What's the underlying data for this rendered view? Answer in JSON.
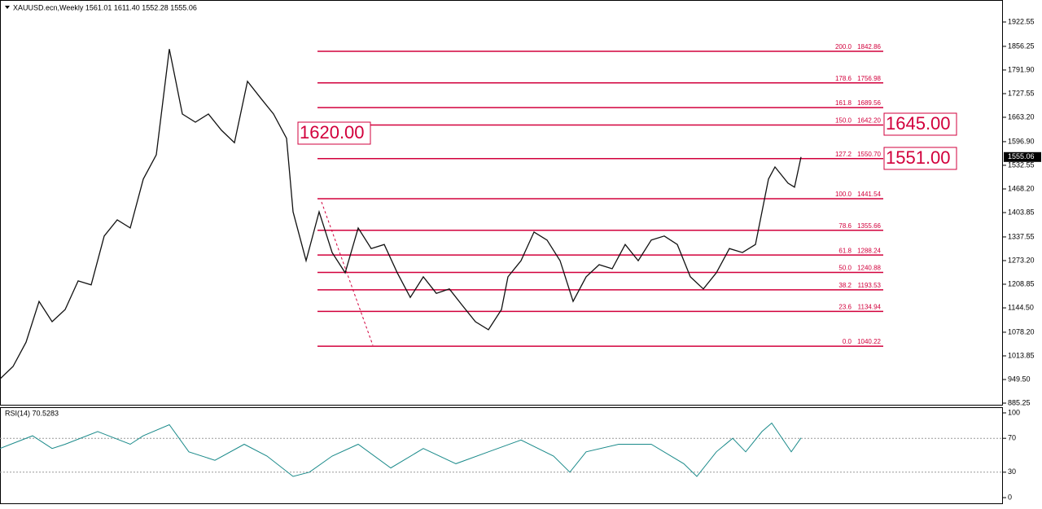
{
  "chart_data": [
    {
      "type": "line",
      "title": "XAUUSD.ecn,Weekly  1561.01 1611.40 1552.28 1555.06",
      "color": "#111111",
      "x": [
        0,
        4,
        8,
        12,
        16,
        20,
        24,
        28,
        32,
        36,
        40,
        44,
        48,
        52,
        54,
        56,
        60,
        64,
        68,
        72,
        76,
        80,
        84,
        88,
        90,
        94,
        98,
        102,
        106,
        110,
        114,
        118,
        122,
        126,
        130,
        134,
        138,
        142,
        146,
        150,
        154,
        156,
        160,
        164,
        168,
        172,
        176,
        180,
        184,
        188,
        192,
        196,
        200,
        204,
        208,
        212,
        216,
        220,
        224,
        228,
        232,
        234,
        236,
        238,
        242,
        244,
        246
      ],
      "values": [
        951,
        985,
        1051,
        1162,
        1107,
        1140,
        1218,
        1207,
        1340,
        1384,
        1362,
        1495,
        1561,
        1849,
        1761,
        1672,
        1650,
        1672,
        1628,
        1594,
        1761,
        1716,
        1672,
        1606,
        1406,
        1273,
        1406,
        1295,
        1240,
        1362,
        1306,
        1317,
        1240,
        1173,
        1229,
        1184,
        1196,
        1151,
        1107,
        1085,
        1140,
        1229,
        1273,
        1351,
        1329,
        1273,
        1162,
        1229,
        1262,
        1251,
        1317,
        1273,
        1329,
        1340,
        1317,
        1229,
        1196,
        1240,
        1306,
        1295,
        1317,
        1406,
        1495,
        1528,
        1484,
        1473,
        1555
      ],
      "xlim": [
        0,
        308
      ],
      "ylim": [
        878.6,
        1982.4
      ],
      "yticks": [
        {
          "value": 1922.55,
          "label": "1922.55"
        },
        {
          "value": 1856.25,
          "label": "1856.25"
        },
        {
          "value": 1791.9,
          "label": "1791.90"
        },
        {
          "value": 1727.55,
          "label": "1727.55"
        },
        {
          "value": 1663.2,
          "label": "1663.20"
        },
        {
          "value": 1596.9,
          "label": "1596.90"
        },
        {
          "value": 1532.55,
          "label": "1532.55"
        },
        {
          "value": 1468.2,
          "label": "1468.20"
        },
        {
          "value": 1403.85,
          "label": "1403.85"
        },
        {
          "value": 1337.55,
          "label": "1337.55"
        },
        {
          "value": 1273.2,
          "label": "1273.20"
        },
        {
          "value": 1208.85,
          "label": "1208.85"
        },
        {
          "value": 1144.5,
          "label": "1144.50"
        },
        {
          "value": 1078.2,
          "label": "1078.20"
        },
        {
          "value": 1013.85,
          "label": "1013.85"
        },
        {
          "value": 949.5,
          "label": "949.50"
        },
        {
          "value": 885.25,
          "label": "885.25"
        }
      ],
      "last_price": 1555.06,
      "level_color": "#d2003c",
      "levels": [
        {
          "ratio": "200.0",
          "price": 1842.86
        },
        {
          "ratio": "178.6",
          "price": 1756.98
        },
        {
          "ratio": "161.8",
          "price": 1689.56
        },
        {
          "ratio": "150.0",
          "price": {
            "value": 1642.2,
            "label": "1642.20"
          }
        },
        {
          "ratio": "127.2",
          "price": {
            "value": 1550.7,
            "label": "1550.70"
          }
        },
        {
          "ratio": "100.0",
          "price": 1441.54
        },
        {
          "ratio": "78.6",
          "price": 1355.66
        },
        {
          "ratio": "61.8",
          "price": 1288.24
        },
        {
          "ratio": "50.0",
          "price": 1240.88
        },
        {
          "ratio": "38.2",
          "price": 1193.53
        },
        {
          "ratio": "23.6",
          "price": 1134.94
        },
        {
          "ratio": "0.0",
          "price": 1040.22
        }
      ],
      "annotations": [
        "1620.00",
        "1645.00",
        "1551.00"
      ]
    },
    {
      "type": "line",
      "title": "RSI(14) 70.5283",
      "color": "#1a8a8a",
      "x": [
        0,
        10,
        16,
        20,
        30,
        40,
        44,
        52,
        58,
        66,
        75,
        82,
        90,
        95,
        102,
        110,
        120,
        130,
        140,
        150,
        160,
        170,
        175,
        180,
        190,
        200,
        210,
        214,
        220,
        225,
        229,
        234,
        237,
        243,
        246
      ],
      "values": [
        58,
        73,
        58,
        63,
        78,
        63,
        73,
        86,
        54,
        44,
        63,
        49,
        25,
        30,
        49,
        63,
        35,
        58,
        40,
        54,
        68,
        49,
        30,
        54,
        63,
        63,
        40,
        25,
        54,
        70,
        54,
        78,
        88,
        54,
        70.5
      ],
      "xlim": [
        0,
        308
      ],
      "ylim": [
        -6.7,
        106.7
      ],
      "yticks": [
        100,
        70,
        30,
        0
      ],
      "levels": [
        70,
        30
      ]
    }
  ]
}
